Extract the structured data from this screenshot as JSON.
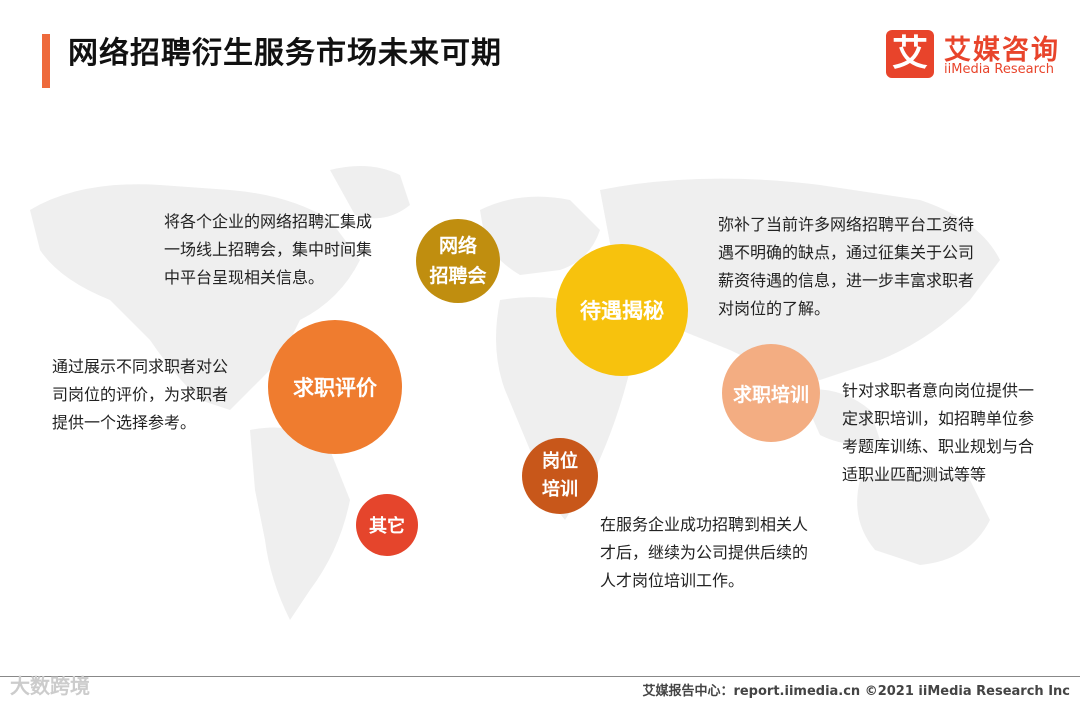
{
  "header": {
    "title": "网络招聘衍生服务市场未来可期",
    "logo_mark": "艾",
    "logo_cn": "艾媒咨询",
    "logo_en": "iiMedia Research"
  },
  "nodes": {
    "job_fair": {
      "label": "网络\n招聘会",
      "color": "#c08e0f",
      "desc": [
        "将各个企业的网络招聘汇集成",
        "一场线上招聘会，集中时间集",
        "中平台呈现相关信息。"
      ]
    },
    "salary": {
      "label": "待遇揭秘",
      "color": "#f7c20d",
      "desc": [
        "弥补了当前许多网络招聘平台工资待",
        "遇不明确的缺点，通过征集关于公司",
        "薪资待遇的信息，进一步丰富求职者",
        "对岗位的了解。"
      ]
    },
    "review": {
      "label": "求职评价",
      "color": "#ef7c2f",
      "desc": [
        "通过展示不同求职者对公",
        "司岗位的评价，为求职者",
        "提供一个选择参考。"
      ]
    },
    "jobseeker_training": {
      "label": "求职培训",
      "color": "#f3ad82",
      "desc": [
        "针对求职者意向岗位提供一",
        "定求职培训，如招聘单位参",
        "考题库训练、职业规划与合",
        "适职业匹配测试等等"
      ]
    },
    "post_training": {
      "label": "岗位\n培训",
      "color": "#c8571a",
      "desc": [
        "在服务企业成功招聘到相关人",
        "才后，继续为公司提供后续的",
        "人才岗位培训工作。"
      ]
    },
    "other": {
      "label": "其它",
      "color": "#e5452c"
    }
  },
  "footer": {
    "source": "艾媒报告中心：report.iimedia.cn   ©2021  iiMedia Research  Inc",
    "watermark": "大数跨境"
  }
}
